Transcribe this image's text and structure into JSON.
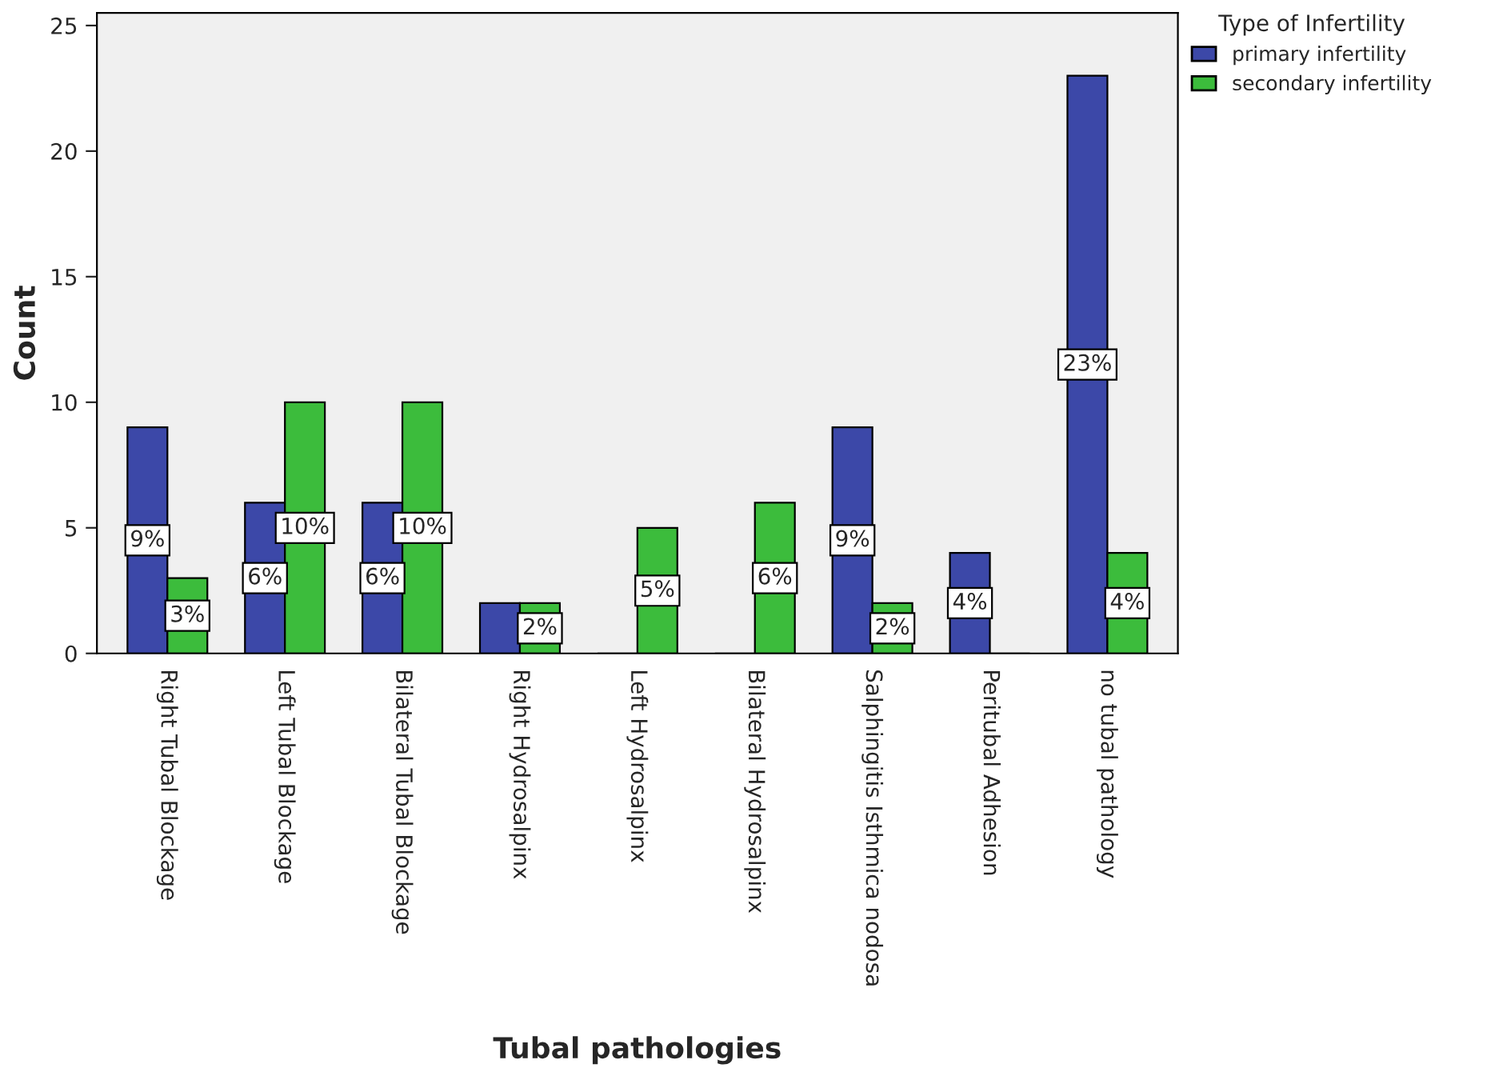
{
  "chart_data": {
    "type": "bar",
    "xlabel": "Tubal pathologies",
    "ylabel": "Count",
    "legend_title": "Type of Infertility",
    "categories": [
      "Right Tubal Blockage",
      "Left Tubal Blockage",
      "Bilateral Tubal Blockage",
      "Right Hydrosalpinx",
      "Left Hydrosalpinx",
      "Bilateral Hydrosalpinx",
      "Salphingitis Isthmica nodosa",
      "Peritubal Adhesion",
      "no tubal pathology"
    ],
    "series": [
      {
        "name": "primary infertility",
        "color": "#3c48a8",
        "values": [
          9,
          6,
          6,
          2,
          0,
          0,
          9,
          4,
          23
        ],
        "value_labels": [
          "9%",
          "6%",
          "6%",
          null,
          null,
          null,
          "9%",
          "4%",
          "23%"
        ]
      },
      {
        "name": "secondary infertility",
        "color": "#3cbc3c",
        "values": [
          3,
          10,
          10,
          2,
          5,
          6,
          2,
          0,
          4
        ],
        "value_labels": [
          "3%",
          "10%",
          "10%",
          "2%",
          "5%",
          "6%",
          "2%",
          null,
          "4%"
        ]
      }
    ],
    "ylim": [
      0,
      25.5
    ],
    "yticks": [
      0,
      5,
      10,
      15,
      20,
      25
    ],
    "grid": false,
    "legend": "top right"
  }
}
